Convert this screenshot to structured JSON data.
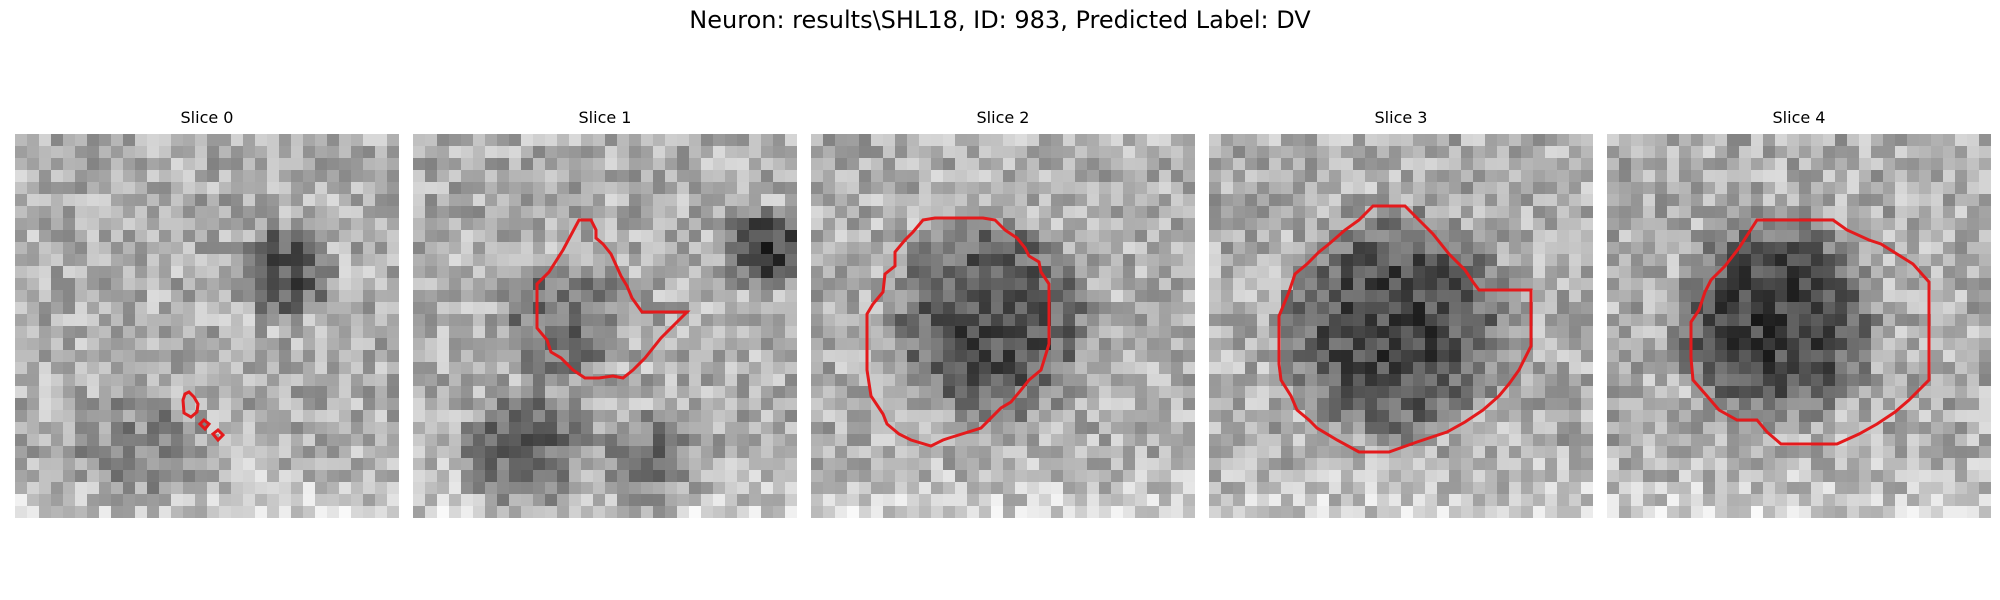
{
  "figure": {
    "title": "Neuron: results\\SHL18, ID: 983, Predicted Label: DV"
  },
  "panels": [
    {
      "title": "Slice 0"
    },
    {
      "title": "Slice 1"
    },
    {
      "title": "Slice 2"
    },
    {
      "title": "Slice 3"
    },
    {
      "title": "Slice 4"
    }
  ],
  "colors": {
    "contour": "#e41a1c",
    "background": "#ffffff"
  }
}
